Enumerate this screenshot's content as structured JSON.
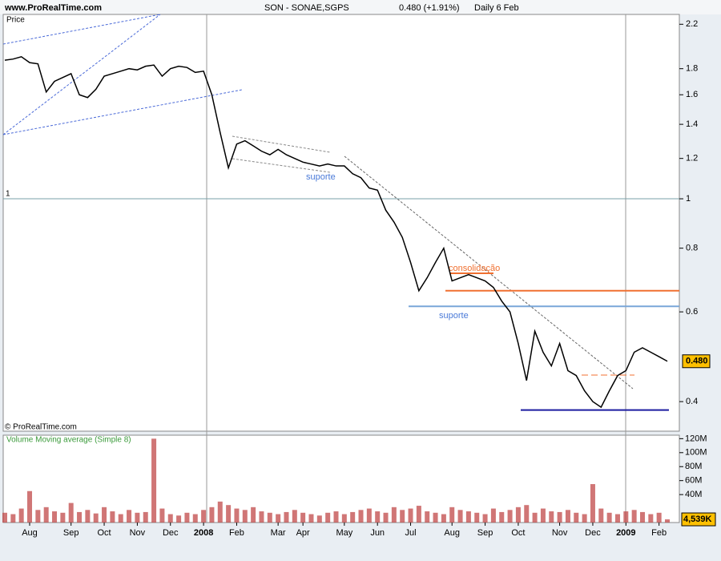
{
  "header": {
    "site": "www.ProRealTime.com",
    "instrument": "SON - SONAE,SGPS",
    "quote": "0.480 (+1.91%)",
    "period": "Daily  6 Feb"
  },
  "chart_data": [
    {
      "type": "line",
      "title": "Price",
      "footer": "© ProRealTime.com",
      "log_scale": true,
      "color": "#000000",
      "values": [
        1.87,
        1.88,
        1.9,
        1.85,
        1.84,
        1.62,
        1.7,
        1.73,
        1.76,
        1.6,
        1.58,
        1.64,
        1.74,
        1.76,
        1.78,
        1.8,
        1.79,
        1.82,
        1.83,
        1.74,
        1.8,
        1.82,
        1.81,
        1.77,
        1.78,
        1.6,
        1.35,
        1.15,
        1.28,
        1.3,
        1.27,
        1.24,
        1.22,
        1.25,
        1.22,
        1.2,
        1.18,
        1.17,
        1.16,
        1.17,
        1.16,
        1.16,
        1.12,
        1.1,
        1.05,
        1.04,
        0.95,
        0.9,
        0.84,
        0.75,
        0.66,
        0.7,
        0.75,
        0.8,
        0.69,
        0.7,
        0.71,
        0.7,
        0.69,
        0.67,
        0.63,
        0.6,
        0.52,
        0.44,
        0.55,
        0.5,
        0.47,
        0.52,
        0.46,
        0.45,
        0.42,
        0.4,
        0.39,
        0.42,
        0.45,
        0.46,
        0.5,
        0.51,
        0.5,
        0.49,
        0.48
      ],
      "ylim": [
        0.35,
        2.3
      ],
      "yticks": [
        0.4,
        0.6,
        0.8,
        1,
        1.2,
        1.4,
        1.6,
        1.8,
        2.2
      ],
      "last_value": {
        "value": 0.48,
        "label": "0.480"
      },
      "levels": [
        {
          "value": 1,
          "color": "#7aa0a8"
        },
        {
          "value": 0.66,
          "color": "#f07030"
        },
        {
          "value": 0.615,
          "color": "#7aa7d8"
        },
        {
          "value": 0.385,
          "color": "#1c1ca0"
        }
      ],
      "annotations": [
        "suporte",
        "suporte",
        "consolidação"
      ]
    },
    {
      "type": "bar",
      "title": "Volume Moving average (Simple 8)",
      "color": "#c04848",
      "categories": [
        null,
        null,
        null,
        "Aug",
        null,
        null,
        null,
        null,
        "Sep",
        null,
        null,
        null,
        "Oct",
        null,
        null,
        null,
        "Nov",
        null,
        null,
        null,
        "Dec",
        null,
        null,
        null,
        "2008",
        null,
        null,
        null,
        "Feb",
        null,
        null,
        null,
        null,
        "Mar",
        null,
        null,
        "Apr",
        null,
        null,
        null,
        null,
        "May",
        null,
        null,
        null,
        "Jun",
        null,
        null,
        null,
        "Jul",
        null,
        null,
        null,
        null,
        "Aug",
        null,
        null,
        null,
        "Sep",
        null,
        null,
        null,
        "Oct",
        null,
        null,
        null,
        null,
        "Nov",
        null,
        null,
        null,
        "Dec",
        null,
        null,
        null,
        "2009",
        null,
        null,
        null,
        "Feb",
        null
      ],
      "values": [
        14000000,
        12000000,
        20000000,
        45000000,
        18000000,
        22000000,
        16000000,
        14000000,
        28000000,
        15000000,
        18000000,
        13000000,
        22000000,
        16000000,
        12000000,
        18000000,
        14000000,
        15000000,
        120000000,
        20000000,
        12000000,
        10000000,
        14000000,
        12000000,
        18000000,
        22000000,
        30000000,
        25000000,
        20000000,
        18000000,
        22000000,
        16000000,
        14000000,
        12000000,
        15000000,
        18000000,
        14000000,
        12000000,
        10000000,
        14000000,
        16000000,
        12000000,
        15000000,
        18000000,
        20000000,
        16000000,
        14000000,
        22000000,
        18000000,
        20000000,
        24000000,
        16000000,
        14000000,
        12000000,
        22000000,
        18000000,
        16000000,
        14000000,
        12000000,
        20000000,
        15000000,
        18000000,
        22000000,
        25000000,
        14000000,
        20000000,
        16000000,
        15000000,
        18000000,
        14000000,
        12000000,
        55000000,
        20000000,
        14000000,
        12000000,
        16000000,
        18000000,
        15000000,
        12000000,
        14000000,
        4539000
      ],
      "ylim": [
        0,
        125000000
      ],
      "yticks": [
        {
          "value": 40000000,
          "label": "40M"
        },
        {
          "value": 60000000,
          "label": "60M"
        },
        {
          "value": 80000000,
          "label": "80M"
        },
        {
          "value": 100000000,
          "label": "100M"
        },
        {
          "value": 120000000,
          "label": "120M"
        }
      ],
      "last_value": {
        "value": 4539000,
        "label": "4,539K"
      }
    }
  ]
}
